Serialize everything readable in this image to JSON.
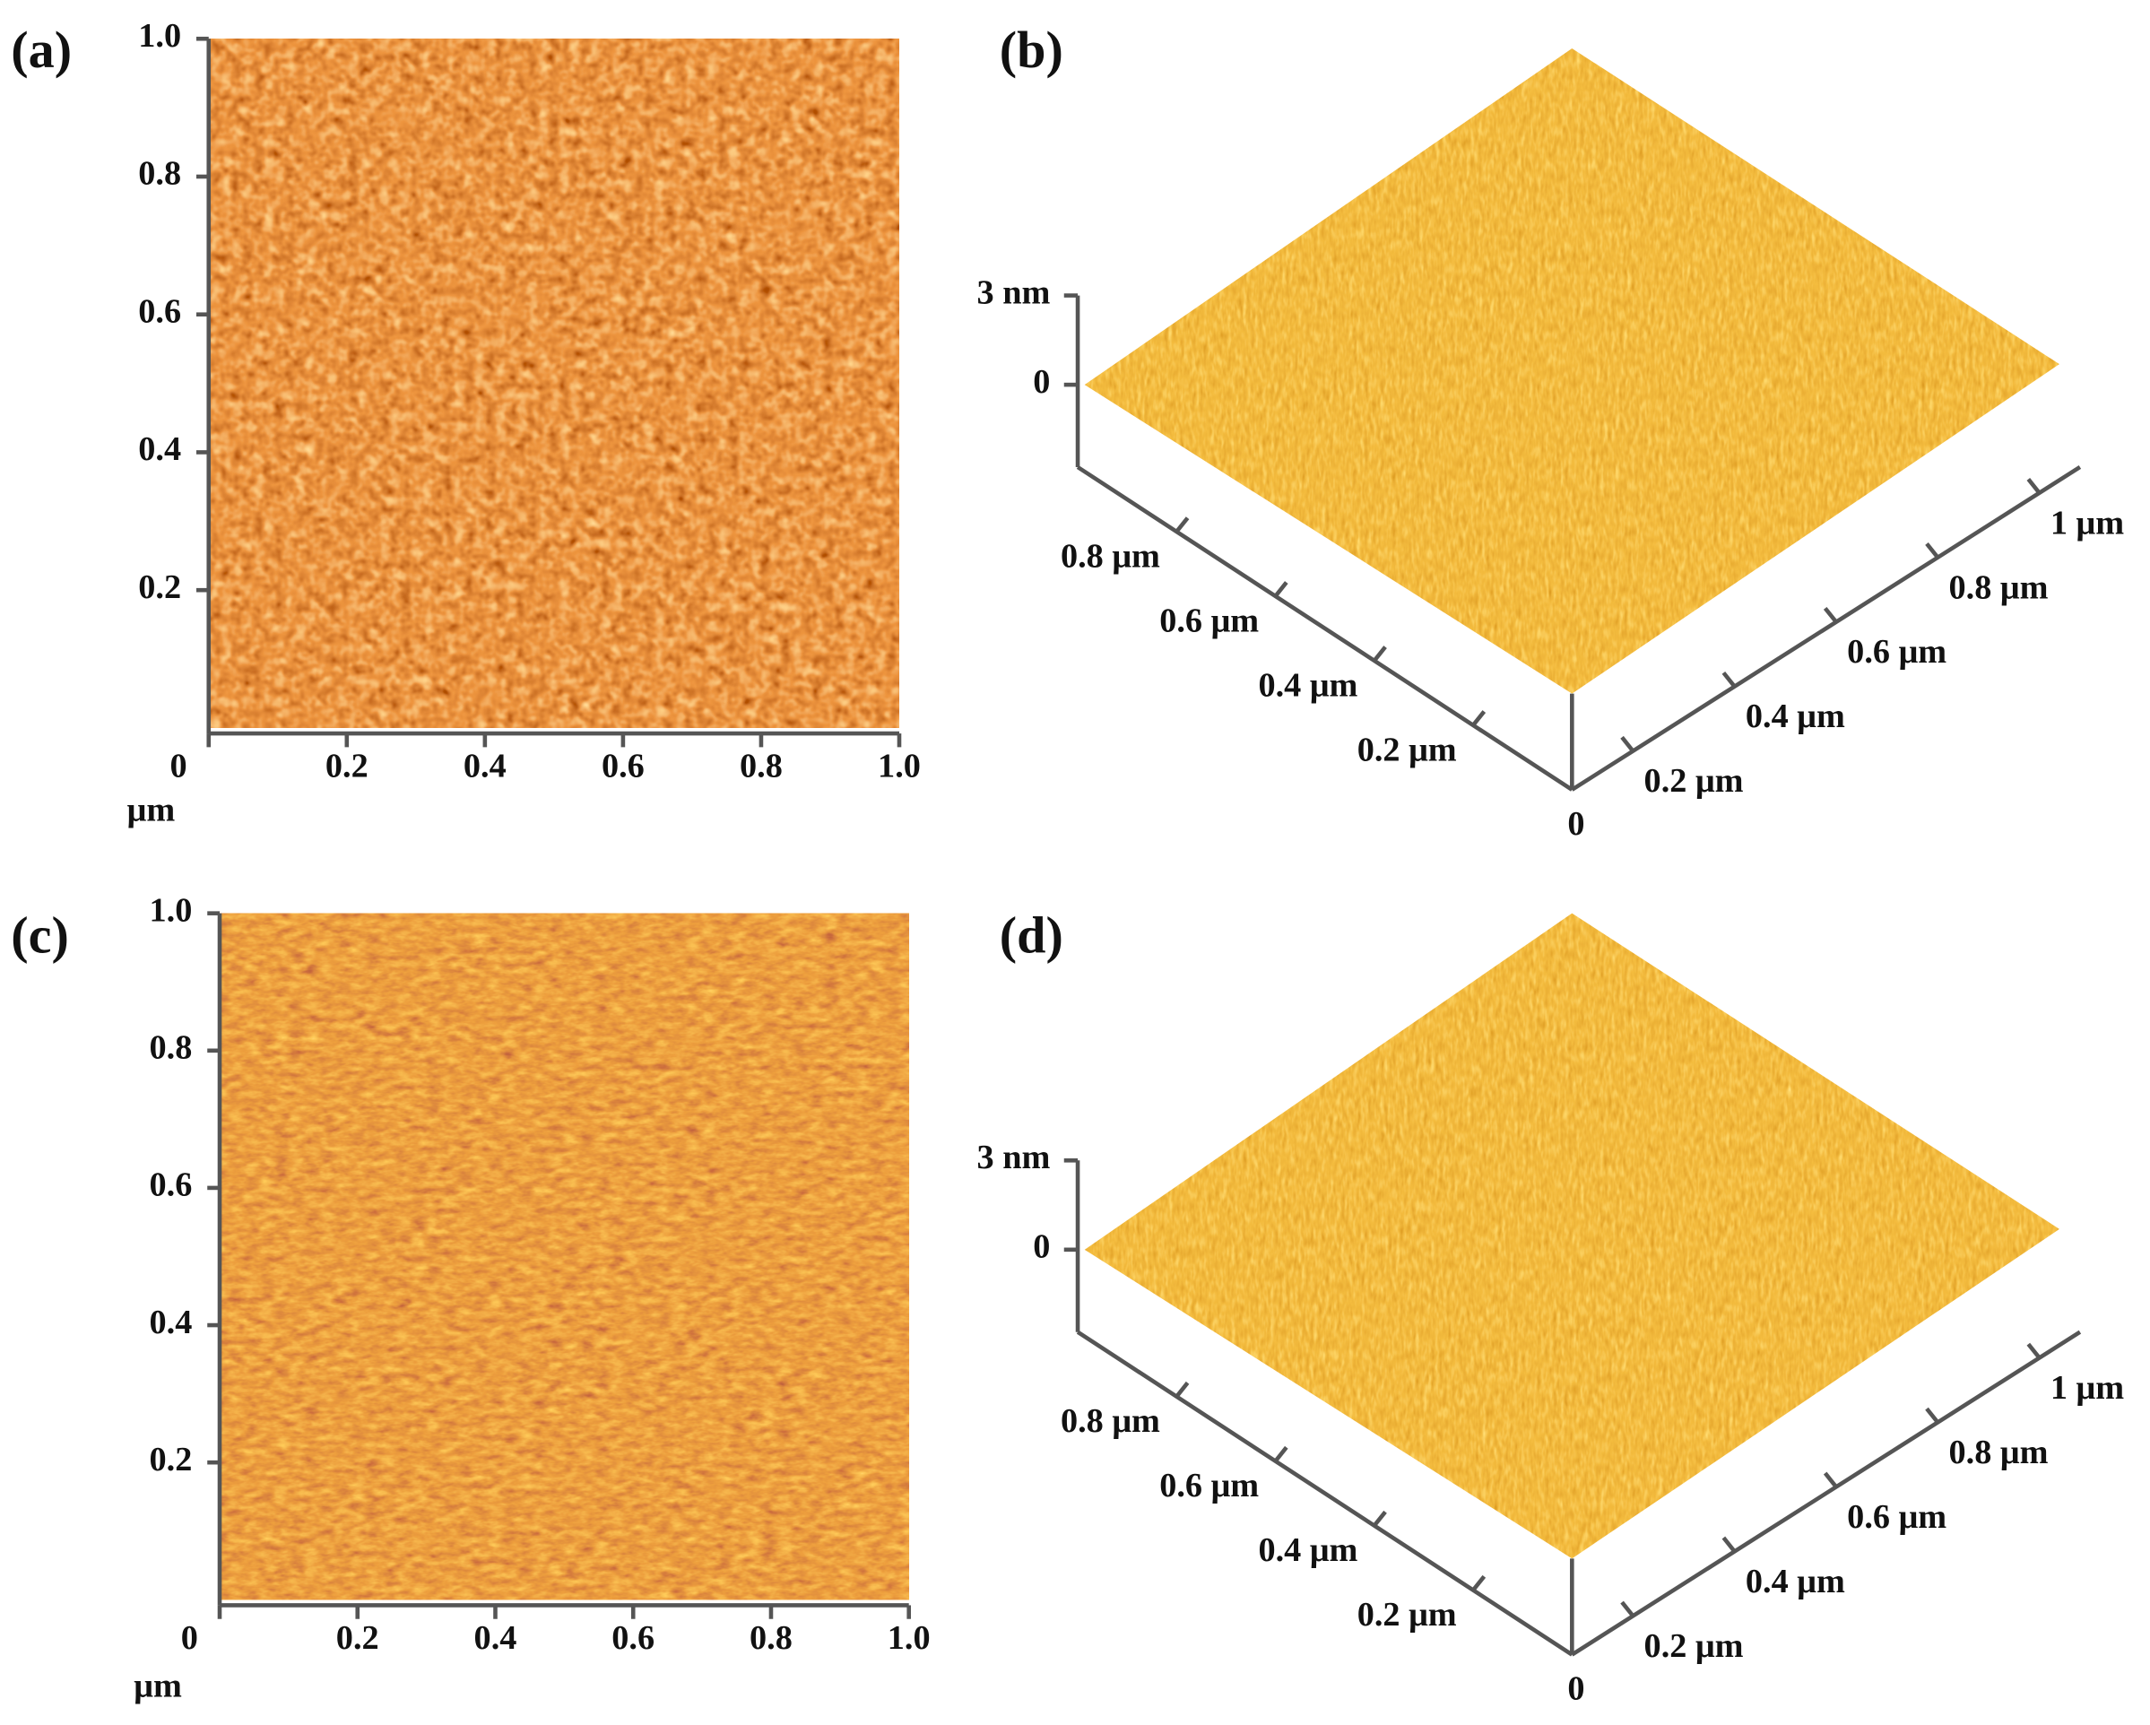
{
  "panels": [
    {
      "label": "(a)",
      "y_ticks": [
        "1.0",
        "0.8",
        "0.6",
        "0.4",
        "0.2"
      ],
      "x_ticks": [
        "0",
        "0.2",
        "0.4",
        "0.6",
        "0.8",
        "1.0"
      ],
      "unit": "μm"
    },
    {
      "label": "(b)",
      "z_ticks": [
        "3 nm",
        "0"
      ],
      "left_ticks": [
        "0.8 μm",
        "0.6 μm",
        "0.4 μm",
        "0.2 μm"
      ],
      "right_ticks": [
        "1 μm",
        "0.8 μm",
        "0.6 μm",
        "0.4 μm",
        "0.2 μm"
      ],
      "origin": "0"
    },
    {
      "label": "(c)",
      "y_ticks": [
        "1.0",
        "0.8",
        "0.6",
        "0.4",
        "0.2"
      ],
      "x_ticks": [
        "0",
        "0.2",
        "0.4",
        "0.6",
        "0.8",
        "1.0"
      ],
      "unit": "μm"
    },
    {
      "label": "(d)",
      "z_ticks": [
        "3 nm",
        "0"
      ],
      "left_ticks": [
        "0.8 μm",
        "0.6 μm",
        "0.4 μm",
        "0.2 μm"
      ],
      "right_ticks": [
        "1 μm",
        "0.8 μm",
        "0.6 μm",
        "0.4 μm",
        "0.2 μm"
      ],
      "origin": "0"
    }
  ]
}
